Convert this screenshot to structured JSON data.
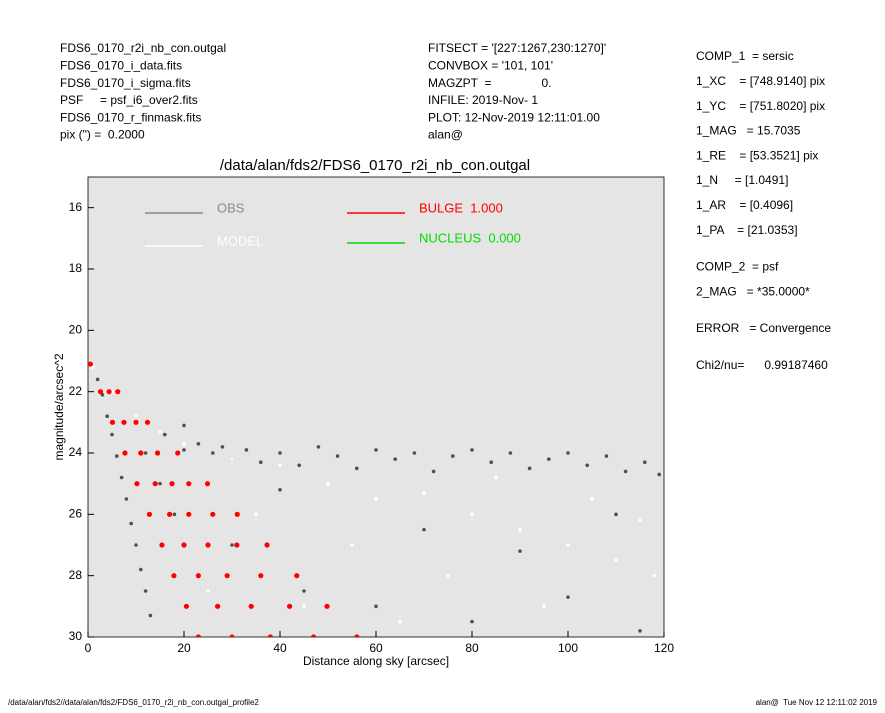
{
  "info_left": [
    "FDS6_0170_r2i_nb_con.outgal",
    "FDS6_0170_i_data.fits",
    "FDS6_0170_i_sigma.fits",
    "PSF     = psf_i6_over2.fits",
    "FDS6_0170_r_finmask.fits",
    "pix (\") =  0.2000"
  ],
  "info_center": [
    "FITSECT = '[227:1267,230:1270]'",
    "CONVBOX = '101, 101'",
    "MAGZPT  =               0.",
    "INFILE: 2019-Nov- 1",
    "PLOT: 12-Nov-2019 12:11:01.00",
    "alan@"
  ],
  "info_right": [
    [
      "COMP_1  = sersic",
      "1_XC    = [748.9140] pix",
      "1_YC    = [751.8020] pix",
      "1_MAG   = 15.7035",
      "1_RE    = [53.3521] pix",
      "1_N     = [1.0491]",
      "1_AR    = [0.4096]",
      "1_PA    = [21.0353]"
    ],
    [
      "COMP_2  = psf",
      "2_MAG   = *35.0000*"
    ],
    [
      "ERROR   = Convergence"
    ],
    [
      "Chi2/nu=      0.99187460"
    ]
  ],
  "footer_left": "/data/alan/fds2//data/alan/fds2/FDS6_0170_r2i_nb_con.outgal_profile2",
  "footer_right": "alan@  Tue Nov 12 12:11:02 2019",
  "chart_data": {
    "type": "scatter",
    "title": "/data/alan/fds2/FDS6_0170_r2i_nb_con.outgal",
    "x_label": "Distance along sky [arcsec]",
    "y_label": "magnitude/arcsec^2",
    "xlim": [
      0,
      120
    ],
    "ylim": [
      30,
      15
    ],
    "xticks": [
      0,
      20,
      40,
      60,
      80,
      100,
      120
    ],
    "yticks": [
      16,
      18,
      20,
      22,
      24,
      26,
      28,
      30
    ],
    "background": "#e5e5e5",
    "series": [
      {
        "name": "OBS",
        "color": "#505050",
        "legend_color": "#8a8a8a",
        "x": [
          20,
          23,
          26,
          28,
          30,
          33,
          36,
          40,
          44,
          48,
          52,
          56,
          60,
          64,
          68,
          72,
          76,
          80,
          84,
          88,
          92,
          96,
          100,
          104,
          108,
          112,
          116,
          119,
          0.5,
          2,
          3,
          4,
          5,
          6,
          7,
          8,
          9,
          10,
          11,
          12,
          13,
          15,
          18,
          30,
          45,
          60,
          80,
          100,
          115,
          70,
          90,
          110,
          40,
          12,
          16,
          20
        ],
        "values": [
          23.9,
          23.7,
          24.0,
          23.8,
          24.2,
          23.9,
          24.3,
          24.0,
          24.4,
          23.8,
          24.1,
          24.5,
          23.9,
          24.2,
          24.0,
          24.6,
          24.1,
          23.9,
          24.3,
          24.0,
          24.5,
          24.2,
          24.0,
          24.4,
          24.1,
          24.6,
          24.3,
          24.7,
          21.1,
          21.6,
          22.1,
          22.8,
          23.4,
          24.1,
          24.8,
          25.5,
          26.3,
          27.0,
          27.8,
          28.5,
          29.3,
          25.0,
          26.0,
          27.0,
          28.5,
          29.0,
          29.5,
          28.7,
          29.8,
          26.5,
          27.2,
          26.0,
          25.2,
          24.0,
          23.4,
          23.1
        ]
      },
      {
        "name": "MODEL",
        "color": "#ffffff",
        "legend_color": "#ffffff",
        "x": [
          1,
          5,
          10,
          15,
          20,
          30,
          40,
          50,
          60,
          70,
          80,
          90,
          100,
          110,
          118,
          35,
          55,
          75,
          95,
          65,
          45,
          25,
          85,
          105,
          115
        ],
        "values": [
          21.2,
          22.0,
          22.8,
          23.3,
          23.7,
          24.2,
          24.4,
          25.0,
          25.5,
          25.3,
          26.0,
          26.5,
          27.0,
          27.5,
          28.0,
          26.0,
          27.0,
          28.0,
          29.0,
          29.5,
          29.0,
          28.5,
          24.8,
          25.5,
          26.2
        ]
      },
      {
        "name": "BULGE  1.000",
        "color": "#ff0000",
        "legend_color": "#ff0000",
        "x": [
          0.5,
          2.6,
          4.4,
          6.2,
          5.1,
          7.5,
          10,
          12.4,
          7.7,
          11,
          14.5,
          18.7,
          10.2,
          14,
          17.5,
          21,
          24.9,
          12.8,
          17,
          21,
          26,
          31.1,
          15.4,
          20,
          25,
          31,
          37.3,
          17.9,
          23,
          29,
          36,
          43.5,
          20.5,
          27,
          34,
          42,
          49.8,
          23,
          30,
          38,
          47,
          56
        ],
        "values": [
          21.1,
          22,
          22,
          22,
          23,
          23,
          23,
          23,
          24,
          24,
          24,
          24,
          25,
          25,
          25,
          25,
          25,
          26,
          26,
          26,
          26,
          26,
          27,
          27,
          27,
          27,
          27,
          28,
          28,
          28,
          28,
          28,
          29,
          29,
          29,
          29,
          29,
          30,
          30,
          30,
          30,
          30
        ]
      },
      {
        "name": "NUCLEUS  0.000",
        "color": "#00dd00",
        "legend_color": "#00dd00",
        "x": [],
        "values": []
      }
    ]
  }
}
